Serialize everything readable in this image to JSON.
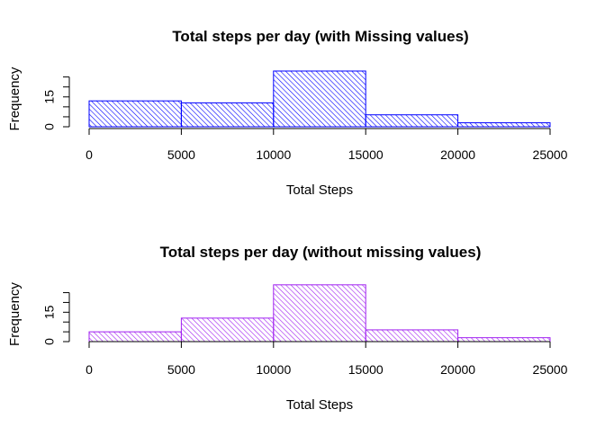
{
  "chart_data": [
    {
      "type": "histogram",
      "title": "Total steps per day (with Missing values)",
      "xlabel": "Total Steps",
      "ylabel": "Frequency",
      "bins": [
        [
          0,
          5000
        ],
        [
          5000,
          10000
        ],
        [
          10000,
          15000
        ],
        [
          15000,
          20000
        ],
        [
          20000,
          25000
        ]
      ],
      "values": [
        13,
        12,
        28,
        6,
        2
      ],
      "xlim": [
        0,
        25000
      ],
      "ylim": [
        0,
        28
      ],
      "x_ticks": [
        "0",
        "5000",
        "10000",
        "15000",
        "20000",
        "25000"
      ],
      "y_tick_labels": [
        "0",
        "15"
      ],
      "bar_color": "#0000ff",
      "fill": "hatched",
      "grid": false
    },
    {
      "type": "histogram",
      "title": "Total steps per day (without missing values)",
      "xlabel": "Total Steps",
      "ylabel": "Frequency",
      "bins": [
        [
          0,
          5000
        ],
        [
          5000,
          10000
        ],
        [
          10000,
          15000
        ],
        [
          15000,
          20000
        ],
        [
          20000,
          25000
        ]
      ],
      "values": [
        5,
        12,
        29,
        6,
        2
      ],
      "xlim": [
        0,
        25000
      ],
      "ylim": [
        0,
        28
      ],
      "x_ticks": [
        "0",
        "5000",
        "10000",
        "15000",
        "20000",
        "25000"
      ],
      "y_tick_labels": [
        "0",
        "15"
      ],
      "bar_color": "#a020f0",
      "fill": "hatched",
      "grid": false
    }
  ]
}
